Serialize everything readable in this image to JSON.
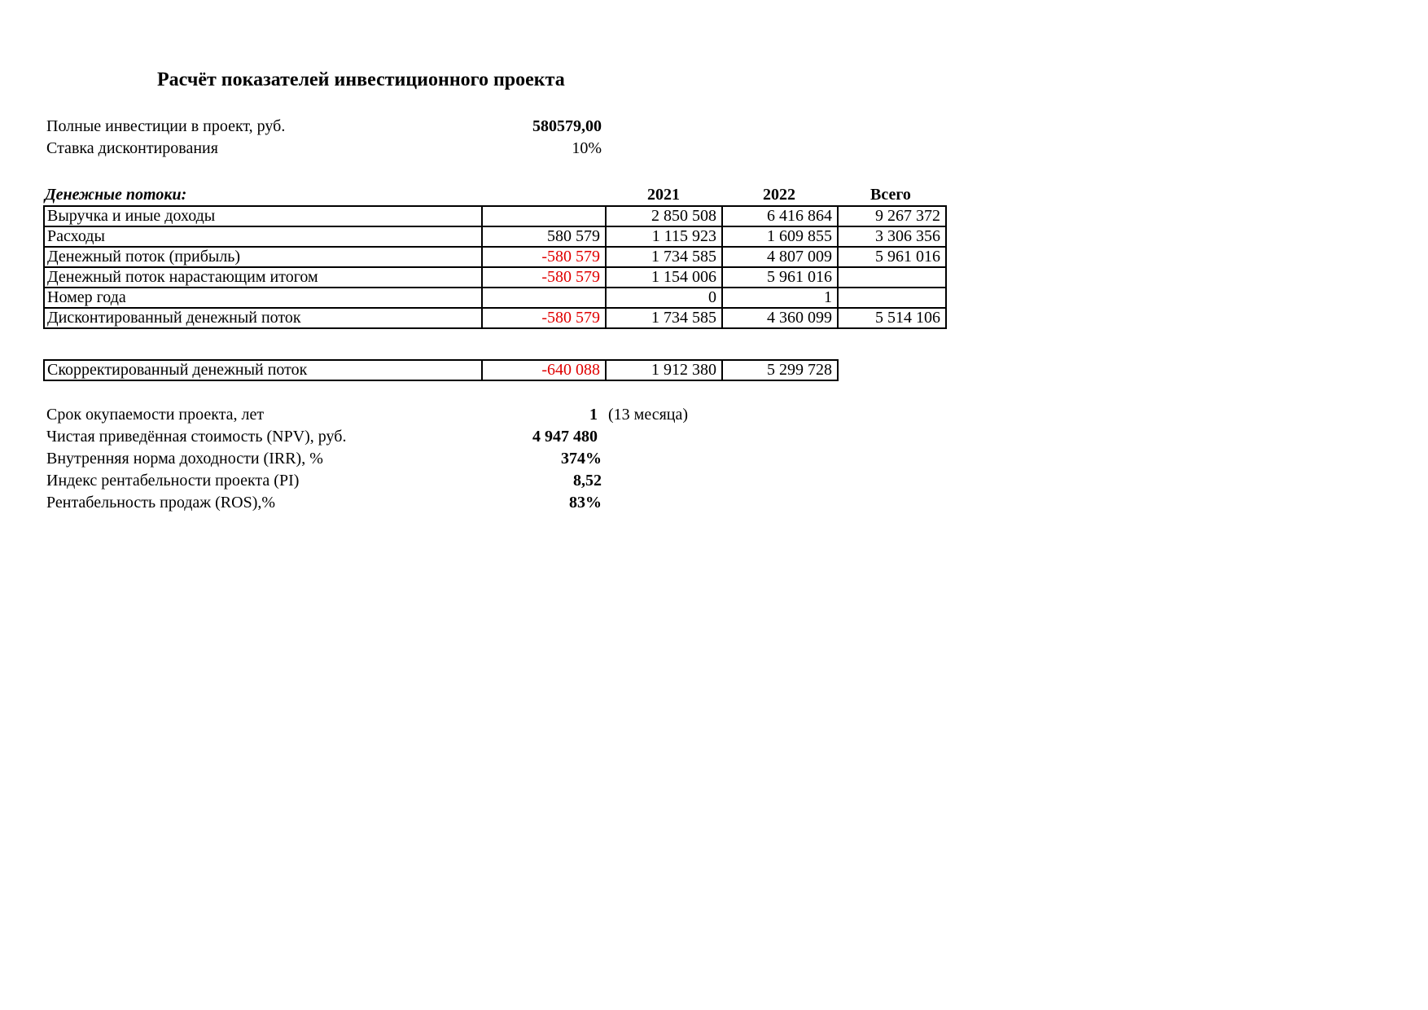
{
  "title": "Расчёт показателей инвестиционного проекта",
  "inputs": [
    {
      "label": "Полные инвестиции в проект, руб.",
      "value": "580579,00",
      "bold": true
    },
    {
      "label": "Ставка дисконтирования",
      "value": "10%",
      "bold": false
    }
  ],
  "cashflows": {
    "heading": "Денежные потоки:",
    "columns": [
      "2021",
      "2022",
      "Всего"
    ],
    "rows": [
      {
        "label": "Выручка и иные доходы",
        "c0": "",
        "c1": "2 850 508",
        "c2": "6 416 864",
        "total": "9 267 372"
      },
      {
        "label": "Расходы",
        "c0": "580 579",
        "c1": "1 115 923",
        "c2": "1 609 855",
        "total": "3 306 356"
      },
      {
        "label": "Денежный поток (прибыль)",
        "c0": "-580 579",
        "c1": "1 734 585",
        "c2": "4 807 009",
        "total": "5 961 016"
      },
      {
        "label": "Денежный поток нарастающим итогом",
        "c0": "-580 579",
        "c1": "1 154 006",
        "c2": "5 961 016",
        "total": ""
      },
      {
        "label": "Номер года",
        "c0": "",
        "c1": "0",
        "c2": "1",
        "total": ""
      },
      {
        "label": "Дисконтированный денежный поток",
        "c0": "-580 579",
        "c1": "1 734 585",
        "c2": "4 360 099",
        "total": "5 514 106"
      }
    ],
    "adjusted": {
      "label": "Скорректированный денежный поток",
      "c0": "-640 088",
      "c1": "1 912 380",
      "c2": "5 299 728"
    }
  },
  "results": [
    {
      "label": "Срок окупаемости проекта, лет",
      "value": "1",
      "note": "(13 месяца)"
    },
    {
      "label": "Чистая приведённая стоимость (NPV), руб.",
      "value": "4 947 480"
    },
    {
      "label": "Внутренняя норма доходности (IRR), %",
      "value": "374%"
    },
    {
      "label": "Индекс рентабельности проекта (PI)",
      "value": "8,52"
    },
    {
      "label": "Рентабельность продаж (ROS),%",
      "value": "83%"
    }
  ],
  "colors": {
    "negative": "#e00000"
  }
}
